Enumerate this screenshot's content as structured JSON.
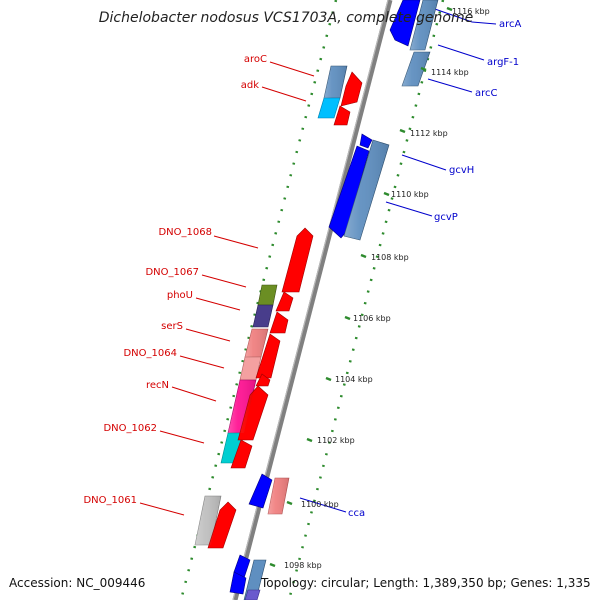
{
  "title": "Dichelobacter nodosus VCS1703A, complete genome",
  "footer": {
    "accession": "Accession: NC_009446",
    "topology": "Topology: circular; Length: 1,389,350 bp; Genes: 1,335"
  },
  "ticks": [
    {
      "label": "1116 kbp",
      "kb": 1116
    },
    {
      "label": "1114 kbp",
      "kb": 1114
    },
    {
      "label": "1112 kbp",
      "kb": 1112
    },
    {
      "label": "1110 kbp",
      "kb": 1110
    },
    {
      "label": "1108 kbp",
      "kb": 1108
    },
    {
      "label": "1106 kbp",
      "kb": 1106
    },
    {
      "label": "1104 kbp",
      "kb": 1104
    },
    {
      "label": "1102 kbp",
      "kb": 1102
    },
    {
      "label": "1100 kbp",
      "kb": 1100
    },
    {
      "label": "1098 kbp",
      "kb": 1098
    }
  ],
  "colors": {
    "backbone": "#808080",
    "dotted_track": "#2e8b2e",
    "left_label": "#d40000",
    "right_label": "#0000cc",
    "forward_gene": "#ff0000",
    "reverse_gene": "#0000ff"
  },
  "left_genes": [
    {
      "name": "aroC",
      "color": "#5f8fc0"
    },
    {
      "name": "adk",
      "color": "#00bfff"
    },
    {
      "name": "DNO_1068",
      "color": "#ff0000"
    },
    {
      "name": "DNO_1067",
      "color": "#6b8e23"
    },
    {
      "name": "phoU",
      "color": "#483d8b"
    },
    {
      "name": "serS",
      "color": "#f08080"
    },
    {
      "name": "DNO_1064",
      "color": "#f4a0a0"
    },
    {
      "name": "recN",
      "color": "#ff1493"
    },
    {
      "name": "DNO_1062",
      "color": "#00ced1"
    },
    {
      "name": "DNO_1061",
      "color": "#c0c0c0"
    }
  ],
  "right_genes": [
    {
      "name": "arcA",
      "color": "#0000ff"
    },
    {
      "name": "argF-1",
      "color": "#5f8fc0"
    },
    {
      "name": "arcC",
      "color": "#5f8fc0"
    },
    {
      "name": "gcvH",
      "color": "#0000ff"
    },
    {
      "name": "gcvP",
      "color": "#5f8fc0"
    },
    {
      "name": "cca",
      "color": "#f08080"
    }
  ]
}
